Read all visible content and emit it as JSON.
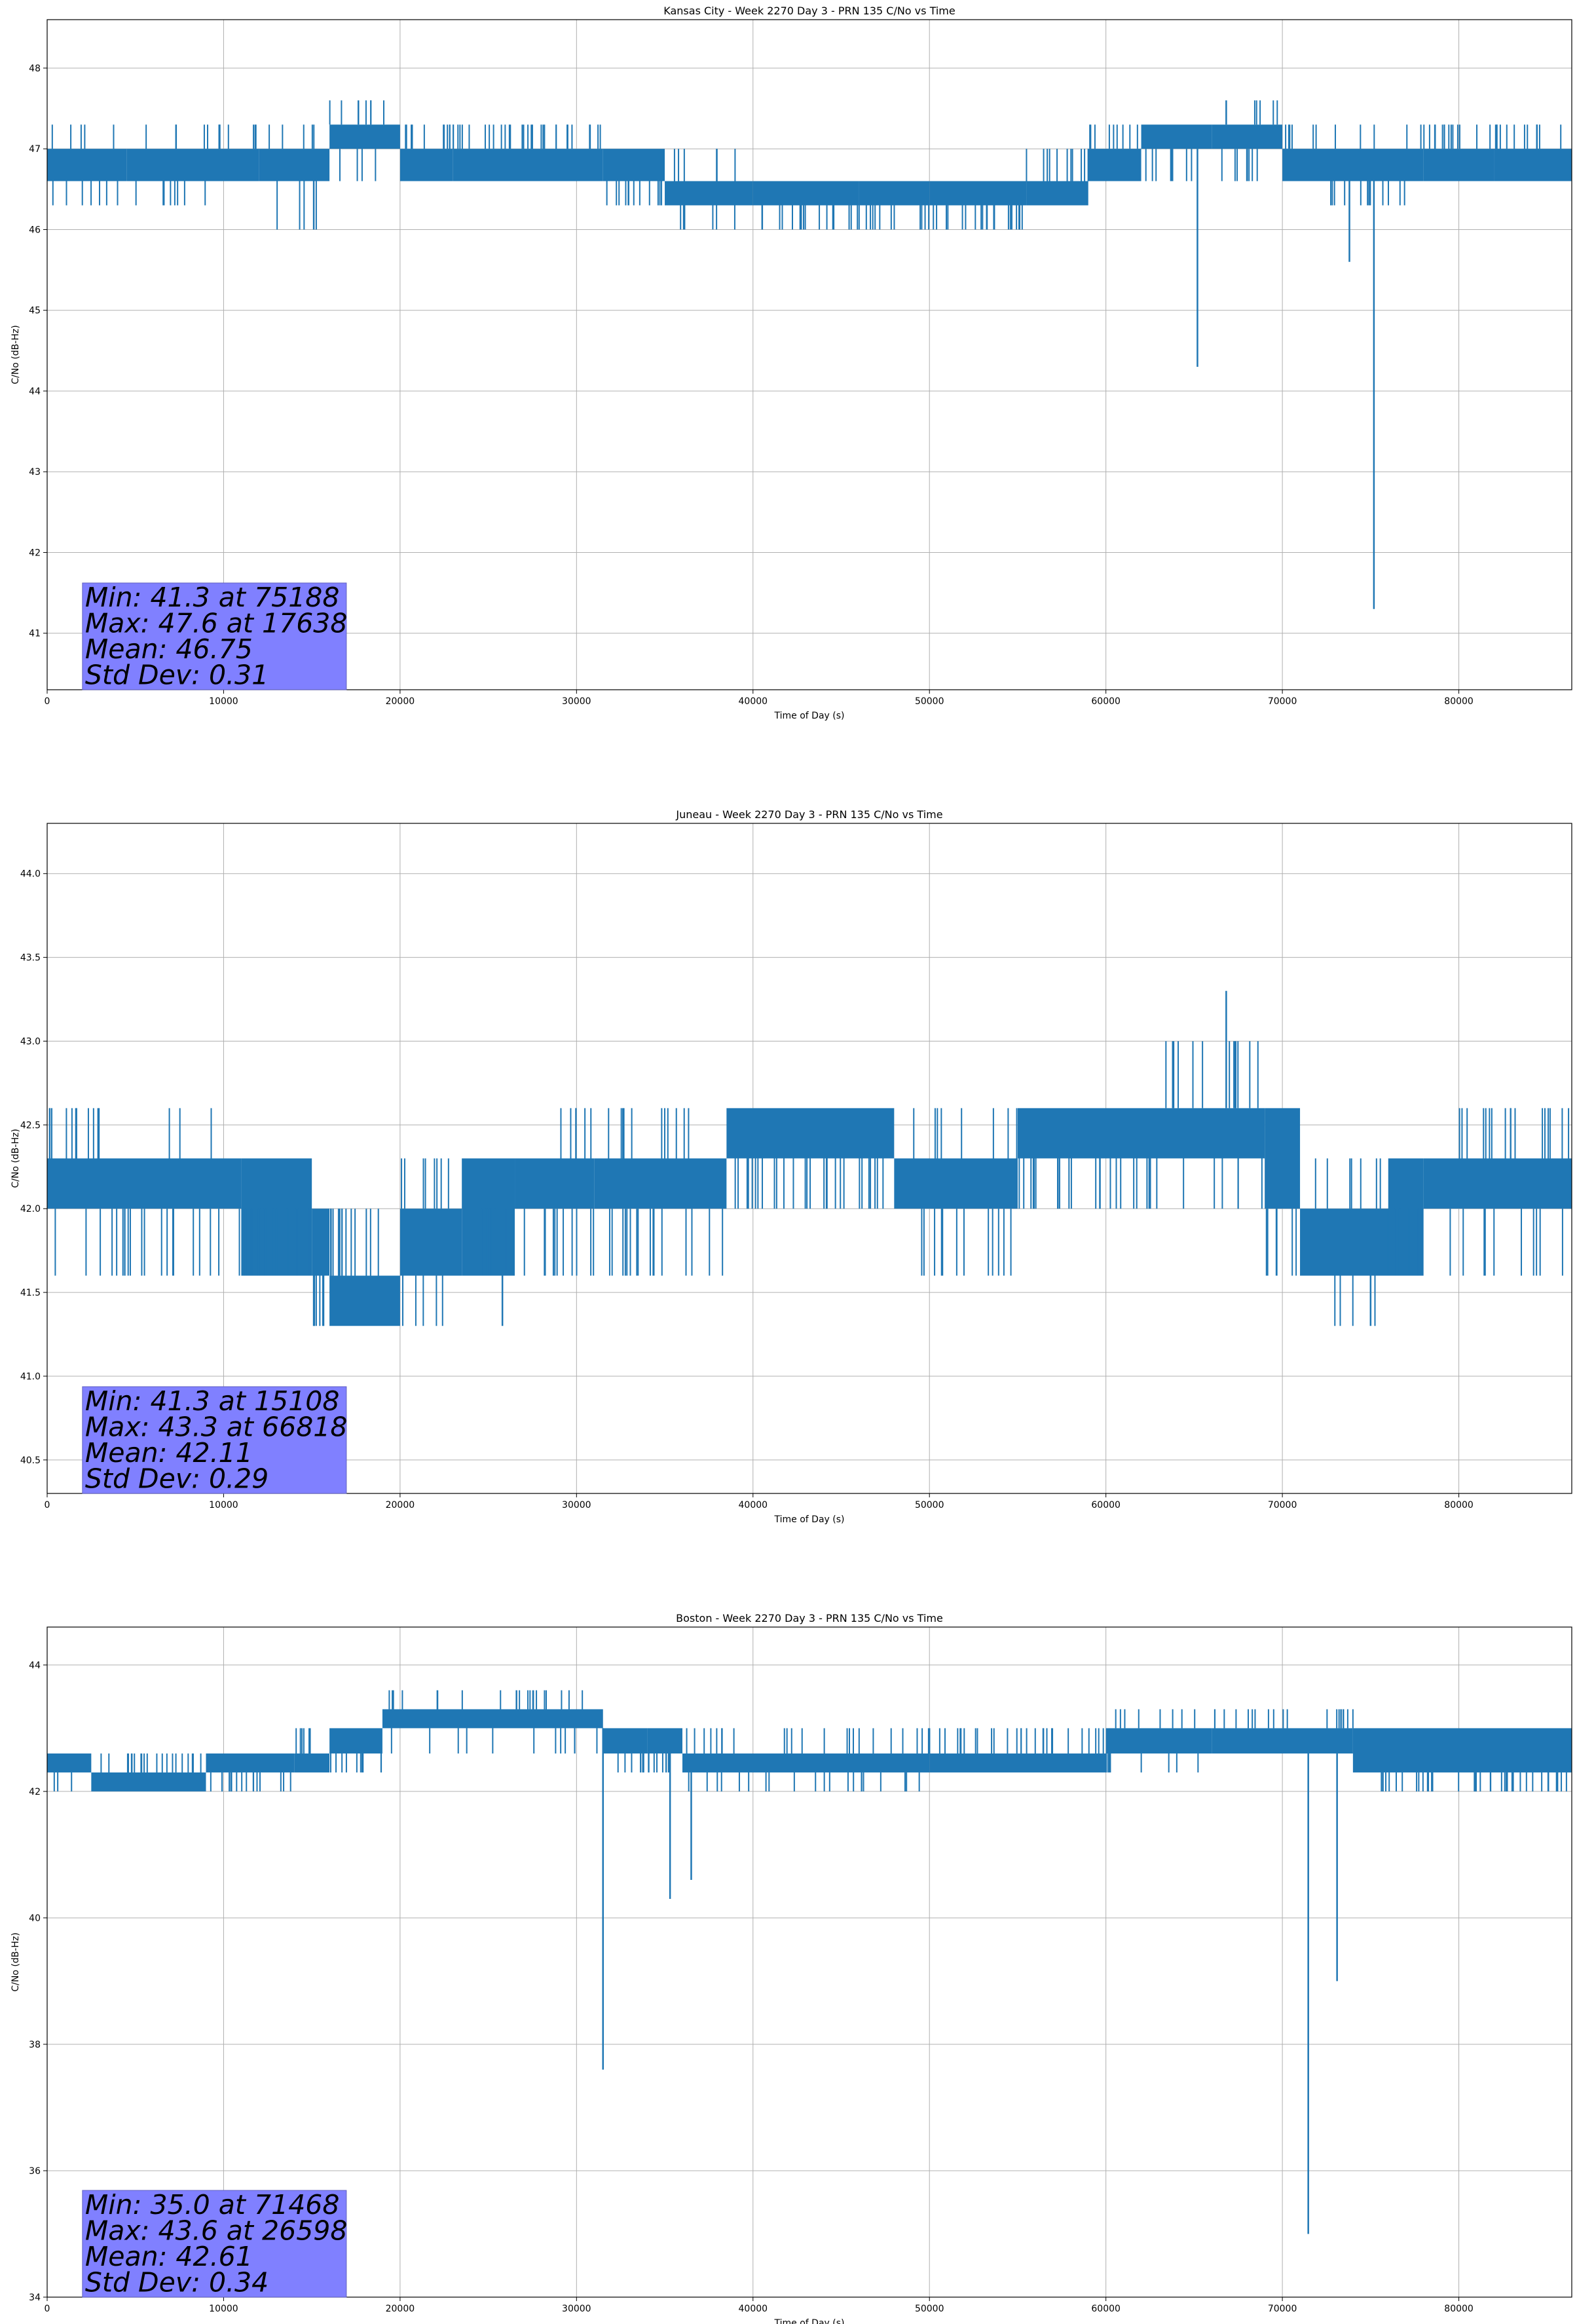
{
  "chart_data": [
    {
      "type": "line",
      "title": "Kansas City - Week 2270 Day 3 - PRN 135 C/No vs Time",
      "xlabel": "Time of Day (s)",
      "ylabel": "C/No (dB-Hz)",
      "xlim": [
        0,
        86400
      ],
      "ylim": [
        40.3,
        48.6
      ],
      "xticks": [
        0,
        10000,
        20000,
        30000,
        40000,
        50000,
        60000,
        70000,
        80000
      ],
      "yticks": [
        41,
        42,
        43,
        44,
        45,
        46,
        47,
        48
      ],
      "grid": true,
      "color": "#1f77b4",
      "series": [
        {
          "bands": [
            {
              "x": [
                0,
                4500
              ],
              "y": [
                46.6,
                47.0
              ],
              "alt": [
                46.3,
                47.3
              ]
            },
            {
              "x": [
                4500,
                9000
              ],
              "y": [
                46.6,
                47.0
              ],
              "alt": [
                46.3,
                47.3
              ]
            },
            {
              "x": [
                9000,
                12000
              ],
              "y": [
                46.6,
                47.0
              ],
              "alt": [
                47.3
              ]
            },
            {
              "x": [
                12000,
                16000
              ],
              "y": [
                46.6,
                47.0
              ],
              "alt": [
                46.0,
                47.3
              ]
            },
            {
              "x": [
                16000,
                20000
              ],
              "y": [
                47.0,
                47.3
              ],
              "alt": [
                46.6,
                47.6
              ]
            },
            {
              "x": [
                20000,
                23000
              ],
              "y": [
                46.6,
                47.0
              ],
              "alt": [
                47.3
              ]
            },
            {
              "x": [
                23000,
                31500
              ],
              "y": [
                46.6,
                47.0
              ],
              "alt": [
                47.3
              ]
            },
            {
              "x": [
                31500,
                35000
              ],
              "y": [
                46.6,
                47.0
              ],
              "alt": [
                46.3
              ]
            },
            {
              "x": [
                35000,
                40000
              ],
              "y": [
                46.3,
                46.6
              ],
              "alt": [
                46.0,
                47.0
              ]
            },
            {
              "x": [
                40000,
                46000
              ],
              "y": [
                46.3,
                46.6
              ],
              "alt": [
                46.0
              ]
            },
            {
              "x": [
                46000,
                50000
              ],
              "y": [
                46.3,
                46.6
              ],
              "alt": [
                46.0
              ]
            },
            {
              "x": [
                50000,
                55500
              ],
              "y": [
                46.3,
                46.6
              ],
              "alt": [
                46.0
              ]
            },
            {
              "x": [
                55500,
                59000
              ],
              "y": [
                46.3,
                46.6
              ],
              "alt": [
                47.0
              ]
            },
            {
              "x": [
                59000,
                62000
              ],
              "y": [
                46.6,
                47.0
              ],
              "alt": [
                47.3
              ]
            },
            {
              "x": [
                62000,
                66000
              ],
              "y": [
                47.0,
                47.3
              ],
              "alt": [
                46.6
              ]
            },
            {
              "x": [
                66000,
                70000
              ],
              "y": [
                47.0,
                47.3
              ],
              "alt": [
                46.6,
                47.6
              ]
            },
            {
              "x": [
                70000,
                72000
              ],
              "y": [
                46.6,
                47.0
              ],
              "alt": [
                47.3
              ]
            },
            {
              "x": [
                72000,
                78000
              ],
              "y": [
                46.6,
                47.0
              ],
              "alt": [
                46.3,
                47.3
              ]
            },
            {
              "x": [
                78000,
                82000
              ],
              "y": [
                46.6,
                47.0
              ],
              "alt": [
                47.3
              ]
            },
            {
              "x": [
                82000,
                86400
              ],
              "y": [
                46.6,
                47.0
              ],
              "alt": [
                47.3
              ]
            }
          ],
          "spikes": [
            {
              "x": 65188,
              "y": 44.3
            },
            {
              "x": 73800,
              "y": 45.6
            },
            {
              "x": 75188,
              "y": 41.3
            },
            {
              "x": 15108,
              "y": 46.0
            },
            {
              "x": 17638,
              "y": 47.6
            },
            {
              "x": 66818,
              "y": 47.6
            }
          ]
        }
      ],
      "stats_box": {
        "min": "Min: 41.3 at 75188",
        "max": "Max: 47.6 at 17638",
        "mean": "Mean: 46.75",
        "std": "Std Dev: 0.31",
        "bg": "#8080ff"
      }
    },
    {
      "type": "line",
      "title": "Juneau - Week 2270 Day 3 - PRN 135 C/No vs Time",
      "xlabel": "Time of Day (s)",
      "ylabel": "C/No (dB-Hz)",
      "xlim": [
        0,
        86400
      ],
      "ylim": [
        40.3,
        44.3
      ],
      "xticks": [
        0,
        10000,
        20000,
        30000,
        40000,
        50000,
        60000,
        70000,
        80000
      ],
      "yticks": [
        40.5,
        41.0,
        41.5,
        42.0,
        42.5,
        43.0,
        43.5,
        44.0
      ],
      "ytick_labels": [
        "40.5",
        "41.0",
        "41.5",
        "42.0",
        "42.5",
        "43.0",
        "43.5",
        "44.0"
      ],
      "grid": true,
      "color": "#1f77b4",
      "series": [
        {
          "bands": [
            {
              "x": [
                0,
                11000
              ],
              "y": [
                42.0,
                42.3
              ],
              "alt": [
                41.6,
                42.6
              ]
            },
            {
              "x": [
                11000,
                15000
              ],
              "y": [
                41.6,
                42.3
              ],
              "alt": [
                42.0
              ]
            },
            {
              "x": [
                15000,
                16000
              ],
              "y": [
                41.6,
                42.0
              ],
              "alt": [
                41.3
              ]
            },
            {
              "x": [
                16000,
                20000
              ],
              "y": [
                41.3,
                41.6
              ],
              "alt": [
                42.0
              ]
            },
            {
              "x": [
                20000,
                23500
              ],
              "y": [
                41.6,
                42.0
              ],
              "alt": [
                41.3,
                42.3
              ]
            },
            {
              "x": [
                23500,
                26500
              ],
              "y": [
                41.6,
                42.3
              ],
              "alt": [
                42.0
              ]
            },
            {
              "x": [
                26500,
                31000
              ],
              "y": [
                42.0,
                42.3
              ],
              "alt": [
                41.6,
                42.6
              ]
            },
            {
              "x": [
                31000,
                38500
              ],
              "y": [
                42.0,
                42.3
              ],
              "alt": [
                41.6,
                42.6
              ]
            },
            {
              "x": [
                38500,
                48000
              ],
              "y": [
                42.3,
                42.6
              ],
              "alt": [
                42.0
              ]
            },
            {
              "x": [
                48000,
                55000
              ],
              "y": [
                42.0,
                42.3
              ],
              "alt": [
                41.6,
                42.6
              ]
            },
            {
              "x": [
                55000,
                63000
              ],
              "y": [
                42.3,
                42.6
              ],
              "alt": [
                42.0
              ]
            },
            {
              "x": [
                63000,
                69000
              ],
              "y": [
                42.3,
                42.6
              ],
              "alt": [
                42.0,
                43.0
              ]
            },
            {
              "x": [
                69000,
                71000
              ],
              "y": [
                42.0,
                42.6
              ],
              "alt": [
                41.6
              ]
            },
            {
              "x": [
                71000,
                76000
              ],
              "y": [
                41.6,
                42.0
              ],
              "alt": [
                42.3,
                41.3
              ]
            },
            {
              "x": [
                76000,
                78000
              ],
              "y": [
                41.6,
                42.3
              ],
              "alt": [
                42.0
              ]
            },
            {
              "x": [
                78000,
                86400
              ],
              "y": [
                42.0,
                42.3
              ],
              "alt": [
                41.6,
                42.6
              ]
            }
          ],
          "spikes": [
            {
              "x": 66818,
              "y": 43.3
            },
            {
              "x": 15108,
              "y": 41.3
            },
            {
              "x": 75000,
              "y": 41.3
            },
            {
              "x": 25800,
              "y": 41.3
            }
          ]
        }
      ],
      "stats_box": {
        "min": "Min: 41.3 at 15108",
        "max": "Max: 43.3 at 66818",
        "mean": "Mean: 42.11",
        "std": "Std Dev: 0.29",
        "bg": "#8080ff"
      }
    },
    {
      "type": "line",
      "title": "Boston - Week 2270 Day 3 - PRN 135 C/No vs Time",
      "xlabel": "Time of Day (s)",
      "ylabel": "C/No (dB-Hz)",
      "xlim": [
        0,
        86400
      ],
      "ylim": [
        34.0,
        44.6
      ],
      "xticks": [
        0,
        10000,
        20000,
        30000,
        40000,
        50000,
        60000,
        70000,
        80000
      ],
      "yticks": [
        34,
        36,
        38,
        40,
        42,
        44
      ],
      "grid": true,
      "color": "#1f77b4",
      "series": [
        {
          "bands": [
            {
              "x": [
                0,
                2500
              ],
              "y": [
                42.3,
                42.6
              ],
              "alt": [
                42.0
              ]
            },
            {
              "x": [
                2500,
                9000
              ],
              "y": [
                42.0,
                42.3
              ],
              "alt": [
                42.6
              ]
            },
            {
              "x": [
                9000,
                14000
              ],
              "y": [
                42.3,
                42.6
              ],
              "alt": [
                42.0
              ]
            },
            {
              "x": [
                14000,
                16000
              ],
              "y": [
                42.3,
                42.6
              ],
              "alt": [
                43.0
              ]
            },
            {
              "x": [
                16000,
                19000
              ],
              "y": [
                42.6,
                43.0
              ],
              "alt": [
                42.3
              ]
            },
            {
              "x": [
                19000,
                31500
              ],
              "y": [
                43.0,
                43.3
              ],
              "alt": [
                42.6,
                43.6
              ]
            },
            {
              "x": [
                31500,
                34000
              ],
              "y": [
                42.6,
                43.0
              ],
              "alt": [
                42.3
              ]
            },
            {
              "x": [
                34000,
                36000
              ],
              "y": [
                42.6,
                43.0
              ],
              "alt": [
                42.3
              ]
            },
            {
              "x": [
                36000,
                50000
              ],
              "y": [
                42.3,
                42.6
              ],
              "alt": [
                42.0,
                43.0
              ]
            },
            {
              "x": [
                50000,
                60000
              ],
              "y": [
                42.3,
                42.6
              ],
              "alt": [
                43.0
              ]
            },
            {
              "x": [
                60000,
                66000
              ],
              "y": [
                42.6,
                43.0
              ],
              "alt": [
                42.3,
                43.3
              ]
            },
            {
              "x": [
                66000,
                74000
              ],
              "y": [
                42.6,
                43.0
              ],
              "alt": [
                43.3
              ]
            },
            {
              "x": [
                74000,
                86400
              ],
              "y": [
                42.3,
                43.0
              ],
              "alt": [
                42.0
              ]
            }
          ],
          "spikes": [
            {
              "x": 31500,
              "y": 37.6
            },
            {
              "x": 35300,
              "y": 40.3
            },
            {
              "x": 36500,
              "y": 40.6
            },
            {
              "x": 71468,
              "y": 35.0
            },
            {
              "x": 73100,
              "y": 39.0
            },
            {
              "x": 26598,
              "y": 43.6
            }
          ]
        }
      ],
      "stats_box": {
        "min": "Min: 35.0 at 71468",
        "max": "Max: 43.6 at 26598",
        "mean": "Mean: 42.61",
        "std": "Std Dev: 0.34",
        "bg": "#8080ff"
      }
    }
  ]
}
